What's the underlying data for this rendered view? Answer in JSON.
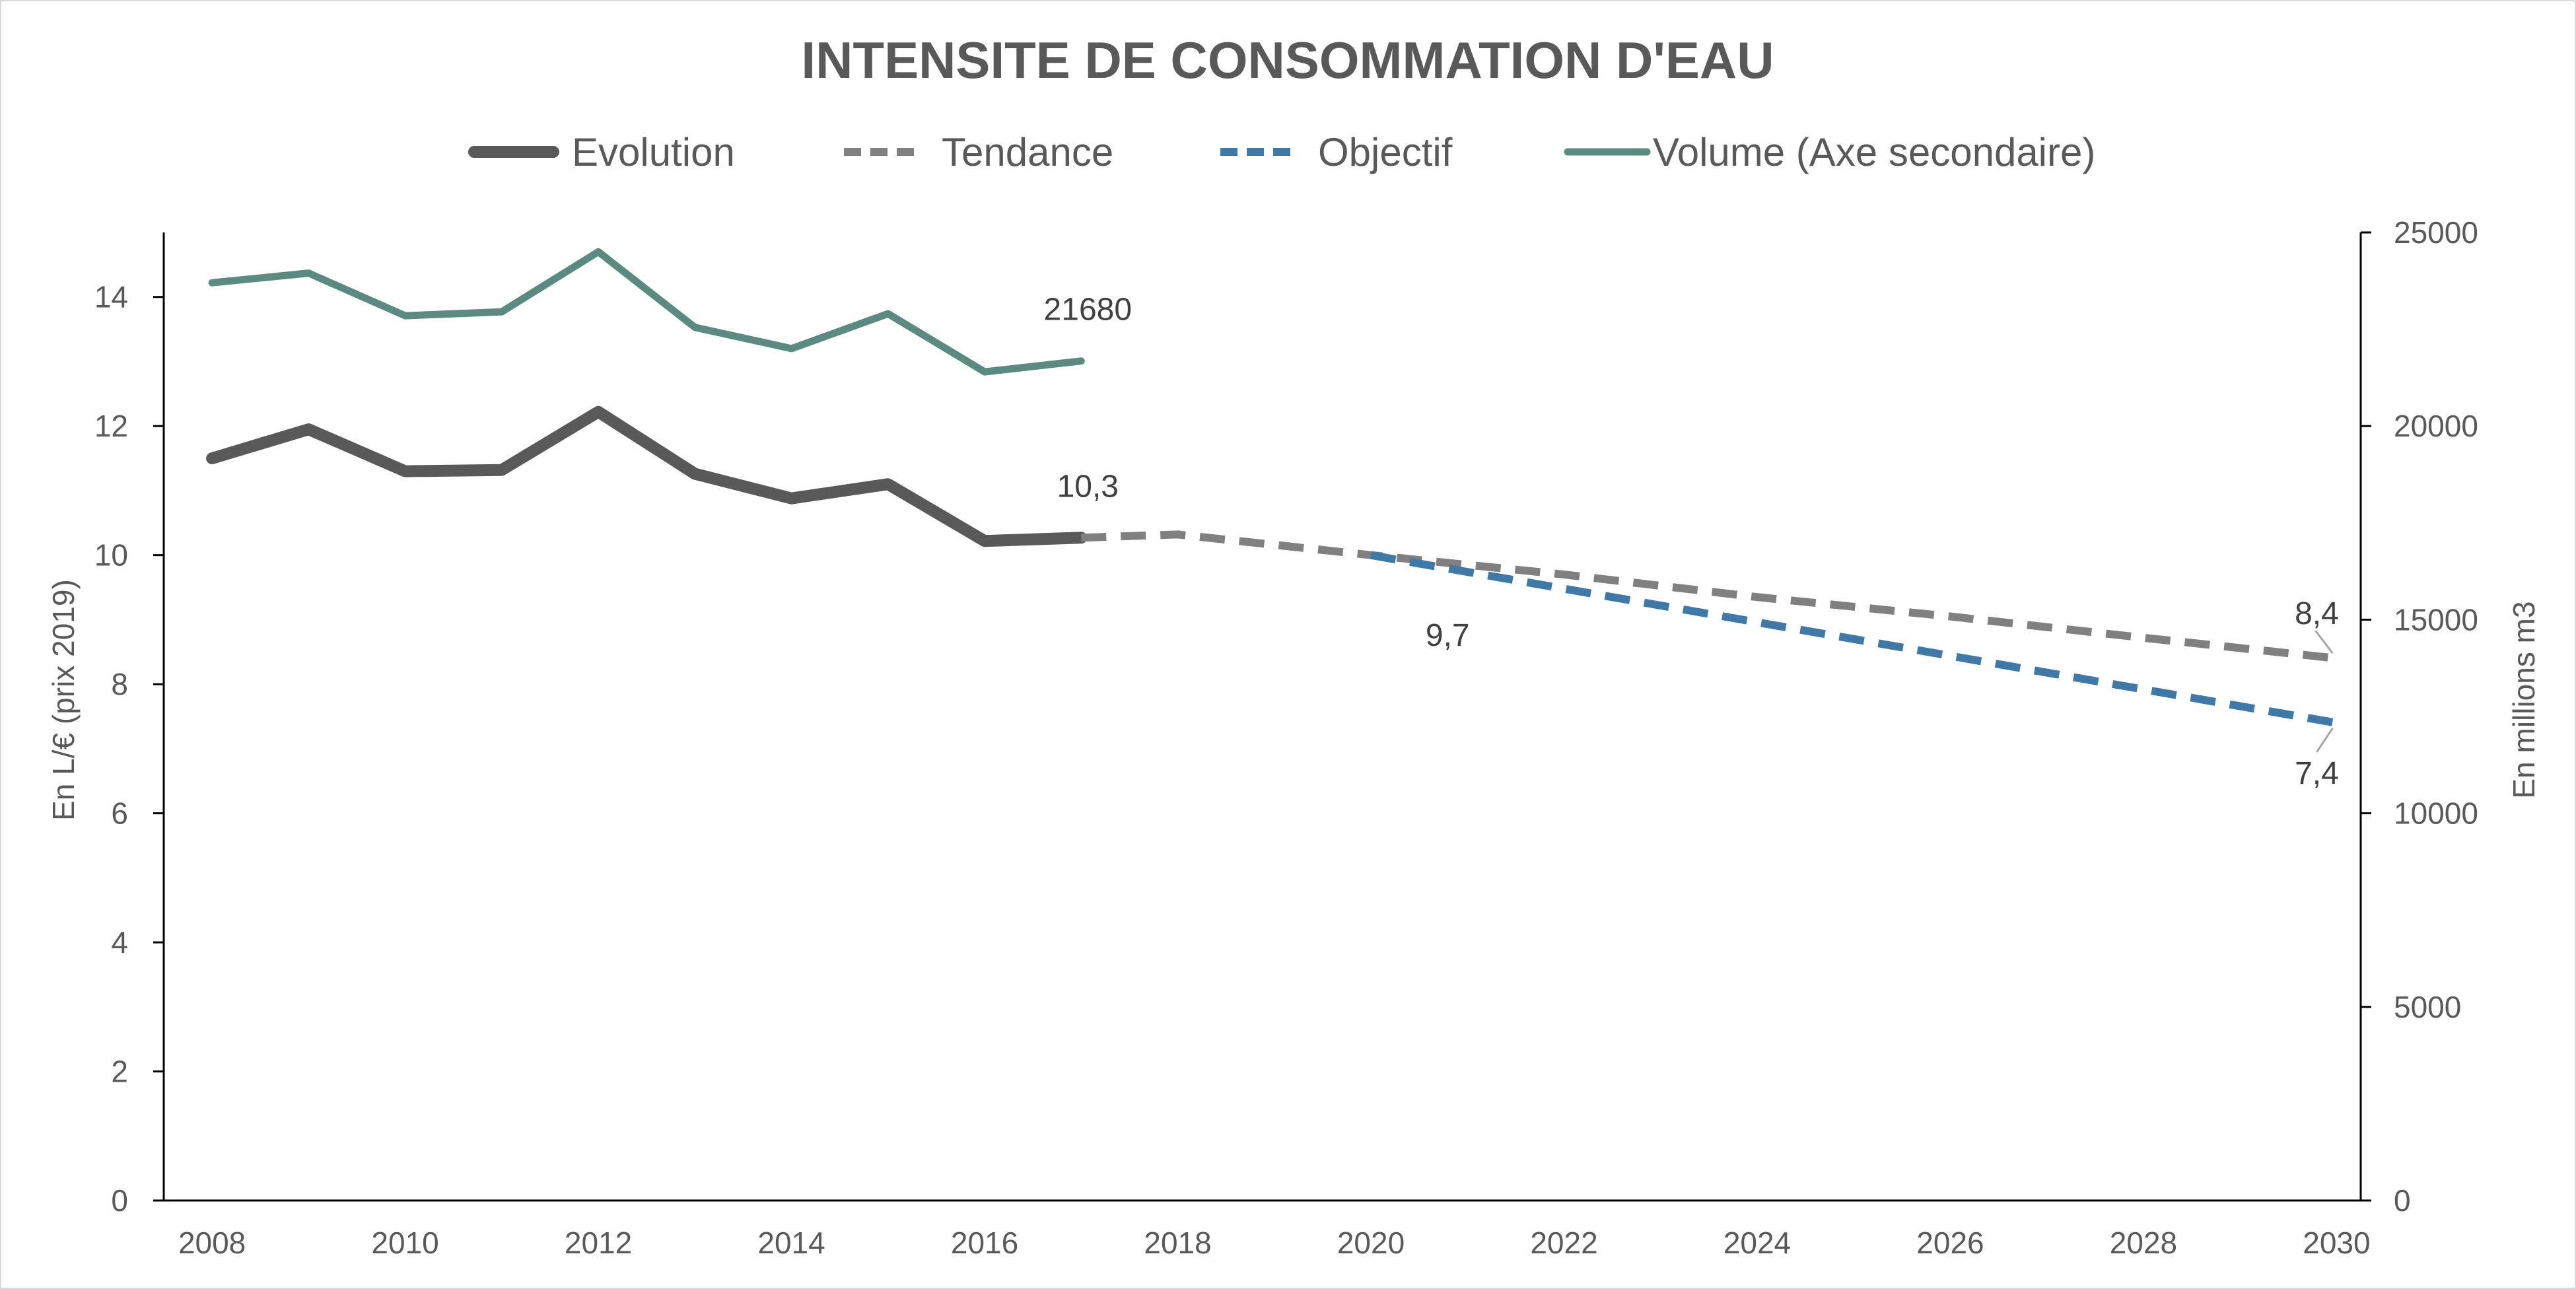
{
  "chart_data": {
    "type": "line",
    "title": "INTENSITE DE CONSOMMATION D'EAU",
    "ylabel": "En L/€ (prix 2019)",
    "y2label": "En millions m3",
    "ylim": [
      0,
      15
    ],
    "y2lim": [
      0,
      25000
    ],
    "xlim": [
      2007.5,
      2030.25
    ],
    "x_ticks": [
      2008,
      2010,
      2012,
      2014,
      2016,
      2018,
      2020,
      2022,
      2024,
      2026,
      2028,
      2030
    ],
    "y_ticks": [
      0,
      2,
      4,
      6,
      8,
      10,
      12,
      14
    ],
    "y2_ticks": [
      0,
      5000,
      10000,
      15000,
      20000,
      25000
    ],
    "grid": false,
    "legend_position": "top",
    "series": [
      {
        "name": "Evolution",
        "axis": "primary",
        "color": "#595959",
        "style": "solid-thick",
        "x": [
          2008,
          2009,
          2010,
          2011,
          2012,
          2013,
          2014,
          2015,
          2016,
          2017
        ],
        "values": [
          11.5,
          11.95,
          11.3,
          11.32,
          12.22,
          11.26,
          10.88,
          11.1,
          10.22,
          10.27
        ]
      },
      {
        "name": "Tendance",
        "axis": "primary",
        "color": "#808080",
        "style": "dashed",
        "x": [
          2017,
          2018,
          2020,
          2022,
          2024,
          2026,
          2028,
          2030
        ],
        "values": [
          10.27,
          10.32,
          10.0,
          9.7,
          9.35,
          9.05,
          8.72,
          8.4
        ]
      },
      {
        "name": "Objectif",
        "axis": "primary",
        "color": "#3E79A8",
        "style": "dashed",
        "x": [
          2020,
          2030
        ],
        "values": [
          10.0,
          7.4
        ]
      },
      {
        "name": "Volume (Axe secondaire)",
        "axis": "secondary",
        "color": "#5A8A80",
        "style": "solid",
        "x": [
          2008,
          2009,
          2010,
          2011,
          2012,
          2013,
          2014,
          2015,
          2016,
          2017
        ],
        "values": [
          23700,
          23950,
          22850,
          22950,
          24500,
          22550,
          22000,
          22900,
          21400,
          21680
        ]
      }
    ],
    "annotations": [
      {
        "text": "21680",
        "x": 2017,
        "value": 21680,
        "axis": "secondary",
        "position": "above"
      },
      {
        "text": "10,3",
        "x": 2017,
        "value": 10.27,
        "axis": "primary",
        "position": "above"
      },
      {
        "text": "9,7",
        "x": 2021,
        "value": 9.7,
        "axis": "primary",
        "position": "below"
      },
      {
        "text": "8,4",
        "x": 2030,
        "value": 8.4,
        "axis": "primary",
        "position": "above",
        "leader": true
      },
      {
        "text": "7,4",
        "x": 2030,
        "value": 7.4,
        "axis": "primary",
        "position": "below",
        "leader": true
      }
    ]
  }
}
